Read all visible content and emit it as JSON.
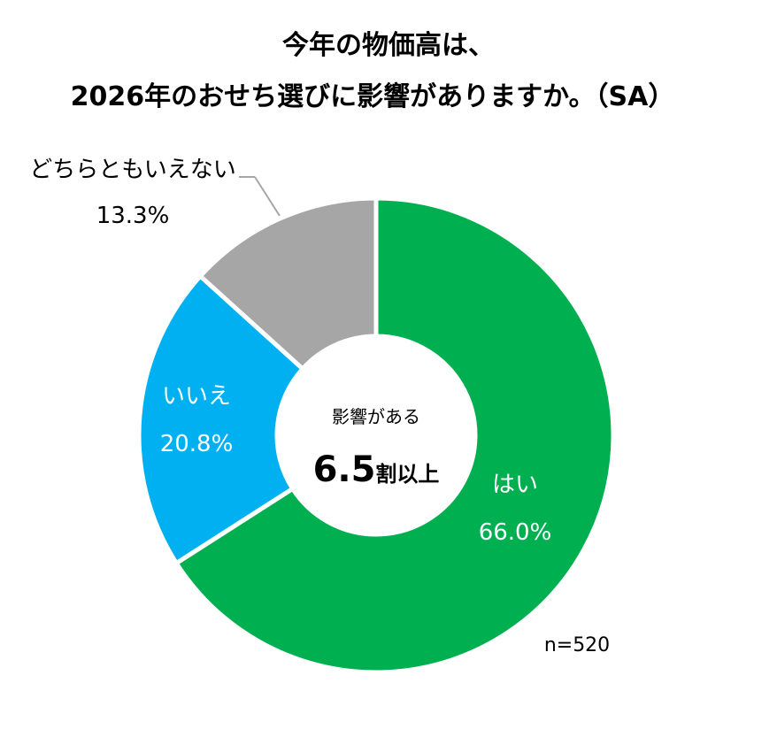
{
  "chart_data": {
    "type": "pie",
    "donut": true,
    "title": [
      "今年の物価高は、",
      "2026年のおせち選びに影響がありますか。（SA）"
    ],
    "slices": [
      {
        "label": "はい",
        "value": 66.0,
        "display": "66.0%",
        "color": "#00B050"
      },
      {
        "label": "いいえ",
        "value": 20.8,
        "display": "20.8%",
        "color": "#00B0F0"
      },
      {
        "label": "どちらともいえない",
        "value": 13.3,
        "display": "13.3%",
        "color": "#A6A6A6"
      }
    ],
    "center_text": {
      "caption": "影響がある",
      "value": "6.5",
      "suffix": "割以上"
    },
    "sample_size": "n=520",
    "legend": "none"
  }
}
